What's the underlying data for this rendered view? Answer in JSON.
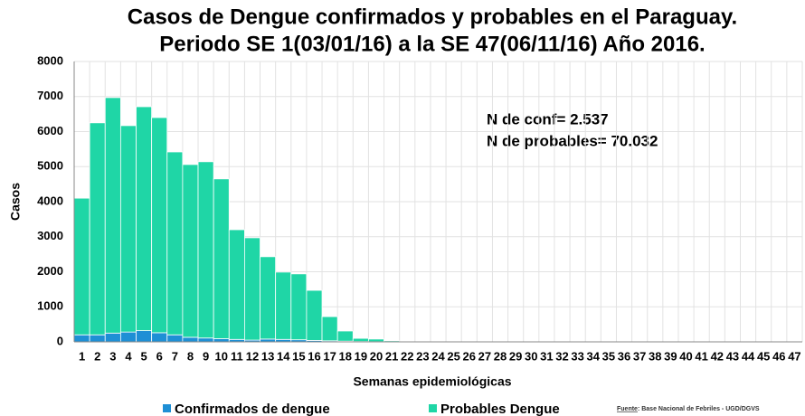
{
  "chart_data": {
    "type": "stacked_bar",
    "title": "Casos de Dengue confirmados y probables en el Paraguay.",
    "subtitle": "Periodo SE 1(03/01/16) a la SE 47(06/11/16) Año 2016.",
    "x_label": "Semanas epidemiológicas",
    "y_label": "Casos",
    "annotations": [
      "N de conf= 2.537",
      "N de probables= 70.032"
    ],
    "source_label": "Fuente",
    "source_text": ": Base Nacional de Febriles - UGD/DGVS",
    "categories": [
      "1",
      "2",
      "3",
      "4",
      "5",
      "6",
      "7",
      "8",
      "9",
      "10",
      "11",
      "12",
      "13",
      "14",
      "15",
      "16",
      "17",
      "18",
      "19",
      "20",
      "21",
      "22",
      "23",
      "24",
      "25",
      "26",
      "27",
      "28",
      "29",
      "30",
      "31",
      "32",
      "33",
      "34",
      "35",
      "36",
      "37",
      "38",
      "39",
      "40",
      "41",
      "42",
      "43",
      "44",
      "45",
      "46",
      "47"
    ],
    "series": [
      {
        "name": "Confirmados de dengue",
        "color": "#1e8fd5",
        "values": [
          200,
          200,
          250,
          280,
          320,
          260,
          200,
          130,
          110,
          90,
          70,
          50,
          80,
          70,
          60,
          40,
          30,
          20,
          10,
          5,
          0,
          0,
          0,
          0,
          0,
          0,
          0,
          0,
          0,
          0,
          0,
          0,
          0,
          0,
          0,
          0,
          0,
          0,
          0,
          0,
          0,
          0,
          0,
          0,
          0,
          0,
          0
        ]
      },
      {
        "name": "Probables Dengue",
        "color": "#1fd6a6",
        "values": [
          3900,
          6050,
          6720,
          5890,
          6390,
          6140,
          5220,
          4930,
          5030,
          4560,
          3130,
          2920,
          2350,
          1920,
          1880,
          1430,
          690,
          290,
          90,
          75,
          30,
          0,
          0,
          0,
          0,
          0,
          0,
          0,
          0,
          0,
          0,
          0,
          0,
          0,
          0,
          0,
          0,
          0,
          0,
          0,
          0,
          0,
          0,
          0,
          0,
          0,
          0
        ]
      }
    ],
    "ylim": [
      0,
      8000
    ],
    "yticks": [
      0,
      1000,
      2000,
      3000,
      4000,
      5000,
      6000,
      7000,
      8000
    ],
    "grid": true
  }
}
